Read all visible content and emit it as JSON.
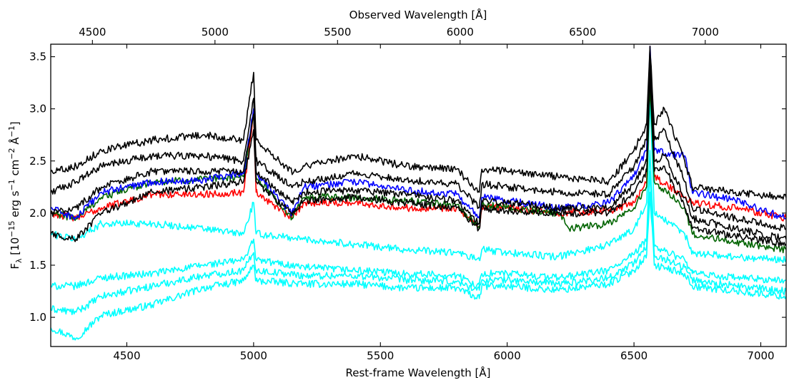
{
  "chart_data": {
    "type": "line",
    "title": "",
    "xlabel": "Rest-frame Wavelength [Å]",
    "ylabel": "F_λ [10^-15 erg s^-1 cm^-2 Å^-1]",
    "ylabel_parts": {
      "f": "F",
      "lambda_sub": "λ",
      "bracket_open": " [10",
      "exp_m15": "−15",
      "erg": " erg s",
      "exp_m1a": "−1",
      "cm": " cm",
      "exp_m2": "−2",
      "angstrom": " Å",
      "exp_m1b": "−1",
      "bracket_close": "]"
    },
    "x2label": "Observed Wavelength [Å]",
    "xlim": [
      4200,
      7100
    ],
    "ylim": [
      0.72,
      3.62
    ],
    "x2lim": [
      4330,
      7330
    ],
    "xticks": [
      4500,
      5000,
      5500,
      6000,
      6500,
      7000
    ],
    "yticks": [
      1.0,
      1.5,
      2.0,
      2.5,
      3.0,
      3.5
    ],
    "x2ticks": [
      4500,
      5000,
      5500,
      6000,
      6500,
      7000
    ],
    "xtick_labels": [
      "4500",
      "5000",
      "5500",
      "6000",
      "6500",
      "7000"
    ],
    "ytick_labels": [
      "1.0",
      "1.5",
      "2.0",
      "2.5",
      "3.0",
      "3.5"
    ],
    "x2tick_labels": [
      "4500",
      "5000",
      "5500",
      "6000",
      "6500",
      "7000"
    ],
    "series": [
      {
        "name": "cyan-1",
        "color": "#00ffff",
        "values": [
          [
            4200,
            0.9
          ],
          [
            4300,
            0.8
          ],
          [
            4400,
            1.02
          ],
          [
            4600,
            1.12
          ],
          [
            4800,
            1.28
          ],
          [
            4960,
            1.35
          ],
          [
            5000,
            1.5
          ],
          [
            5010,
            1.35
          ],
          [
            5200,
            1.32
          ],
          [
            5400,
            1.32
          ],
          [
            5600,
            1.28
          ],
          [
            5800,
            1.28
          ],
          [
            5890,
            1.18
          ],
          [
            5900,
            1.3
          ],
          [
            6000,
            1.3
          ],
          [
            6200,
            1.26
          ],
          [
            6400,
            1.32
          ],
          [
            6500,
            1.45
          ],
          [
            6550,
            1.6
          ],
          [
            6563,
            2.2
          ],
          [
            6580,
            1.5
          ],
          [
            6700,
            1.42
          ],
          [
            6730,
            1.3
          ],
          [
            6900,
            1.25
          ],
          [
            7100,
            1.2
          ]
        ]
      },
      {
        "name": "cyan-2",
        "color": "#00ffff",
        "values": [
          [
            4200,
            1.08
          ],
          [
            4300,
            1.05
          ],
          [
            4400,
            1.2
          ],
          [
            4600,
            1.3
          ],
          [
            4800,
            1.4
          ],
          [
            4960,
            1.45
          ],
          [
            5000,
            1.62
          ],
          [
            5010,
            1.45
          ],
          [
            5200,
            1.4
          ],
          [
            5400,
            1.4
          ],
          [
            5600,
            1.36
          ],
          [
            5800,
            1.34
          ],
          [
            5890,
            1.26
          ],
          [
            5900,
            1.36
          ],
          [
            6000,
            1.36
          ],
          [
            6200,
            1.32
          ],
          [
            6400,
            1.38
          ],
          [
            6500,
            1.52
          ],
          [
            6550,
            1.68
          ],
          [
            6563,
            2.4
          ],
          [
            6580,
            1.6
          ],
          [
            6700,
            1.48
          ],
          [
            6730,
            1.36
          ],
          [
            6900,
            1.3
          ],
          [
            7100,
            1.25
          ]
        ]
      },
      {
        "name": "cyan-3",
        "color": "#00ffff",
        "values": [
          [
            4200,
            1.3
          ],
          [
            4300,
            1.3
          ],
          [
            4400,
            1.38
          ],
          [
            4600,
            1.42
          ],
          [
            4800,
            1.5
          ],
          [
            4960,
            1.55
          ],
          [
            5000,
            1.75
          ],
          [
            5010,
            1.55
          ],
          [
            5200,
            1.48
          ],
          [
            5400,
            1.45
          ],
          [
            5600,
            1.42
          ],
          [
            5800,
            1.4
          ],
          [
            5890,
            1.3
          ],
          [
            5900,
            1.42
          ],
          [
            6000,
            1.42
          ],
          [
            6200,
            1.38
          ],
          [
            6400,
            1.45
          ],
          [
            6500,
            1.6
          ],
          [
            6550,
            1.75
          ],
          [
            6563,
            2.6
          ],
          [
            6580,
            1.68
          ],
          [
            6700,
            1.55
          ],
          [
            6730,
            1.42
          ],
          [
            6900,
            1.38
          ],
          [
            7100,
            1.35
          ]
        ]
      },
      {
        "name": "cyan-4",
        "color": "#00ffff",
        "values": [
          [
            4200,
            1.8
          ],
          [
            4300,
            1.75
          ],
          [
            4400,
            1.9
          ],
          [
            4600,
            1.9
          ],
          [
            4800,
            1.85
          ],
          [
            4960,
            1.8
          ],
          [
            5000,
            2.1
          ],
          [
            5010,
            1.8
          ],
          [
            5200,
            1.75
          ],
          [
            5400,
            1.7
          ],
          [
            5600,
            1.65
          ],
          [
            5800,
            1.62
          ],
          [
            5890,
            1.55
          ],
          [
            5900,
            1.65
          ],
          [
            6000,
            1.62
          ],
          [
            6200,
            1.58
          ],
          [
            6400,
            1.7
          ],
          [
            6500,
            1.85
          ],
          [
            6550,
            2.1
          ],
          [
            6563,
            3.1
          ],
          [
            6580,
            2.0
          ],
          [
            6700,
            1.8
          ],
          [
            6730,
            1.62
          ],
          [
            6900,
            1.58
          ],
          [
            7100,
            1.55
          ]
        ]
      },
      {
        "name": "red",
        "color": "#ff0000",
        "values": [
          [
            4200,
            2.0
          ],
          [
            4300,
            1.95
          ],
          [
            4400,
            2.05
          ],
          [
            4600,
            2.18
          ],
          [
            4800,
            2.18
          ],
          [
            4960,
            2.2
          ],
          [
            5000,
            2.95
          ],
          [
            5010,
            2.2
          ],
          [
            5150,
            1.95
          ],
          [
            5200,
            2.1
          ],
          [
            5400,
            2.1
          ],
          [
            5600,
            2.05
          ],
          [
            5800,
            2.05
          ],
          [
            5890,
            1.85
          ],
          [
            5900,
            2.05
          ],
          [
            6000,
            2.05
          ],
          [
            6200,
            2.0
          ],
          [
            6400,
            2.02
          ],
          [
            6500,
            2.1
          ],
          [
            6550,
            2.3
          ],
          [
            6563,
            3.6
          ],
          [
            6580,
            2.35
          ],
          [
            6700,
            2.15
          ],
          [
            6730,
            2.1
          ],
          [
            6900,
            2.05
          ],
          [
            7100,
            1.95
          ]
        ]
      },
      {
        "name": "green",
        "color": "#006400",
        "values": [
          [
            4200,
            2.0
          ],
          [
            4300,
            1.95
          ],
          [
            4400,
            2.15
          ],
          [
            4600,
            2.3
          ],
          [
            4800,
            2.32
          ],
          [
            4960,
            2.35
          ],
          [
            5000,
            2.95
          ],
          [
            5010,
            2.35
          ],
          [
            5150,
            1.95
          ],
          [
            5200,
            2.15
          ],
          [
            5400,
            2.15
          ],
          [
            5600,
            2.12
          ],
          [
            5800,
            2.08
          ],
          [
            5890,
            1.85
          ],
          [
            5900,
            2.08
          ],
          [
            6000,
            2.05
          ],
          [
            6200,
            2.0
          ],
          [
            6250,
            1.85
          ],
          [
            6400,
            1.9
          ],
          [
            6500,
            2.05
          ],
          [
            6550,
            2.25
          ],
          [
            6563,
            3.2
          ],
          [
            6580,
            2.3
          ],
          [
            6700,
            2.05
          ],
          [
            6730,
            1.8
          ],
          [
            6900,
            1.72
          ],
          [
            7100,
            1.65
          ]
        ]
      },
      {
        "name": "blue",
        "color": "#0000ff",
        "values": [
          [
            4200,
            2.05
          ],
          [
            4300,
            1.95
          ],
          [
            4400,
            2.2
          ],
          [
            4600,
            2.3
          ],
          [
            4800,
            2.32
          ],
          [
            4960,
            2.38
          ],
          [
            5000,
            3.0
          ],
          [
            5010,
            2.38
          ],
          [
            5150,
            2.0
          ],
          [
            5200,
            2.25
          ],
          [
            5400,
            2.3
          ],
          [
            5600,
            2.22
          ],
          [
            5800,
            2.18
          ],
          [
            5890,
            1.95
          ],
          [
            5900,
            2.15
          ],
          [
            6000,
            2.12
          ],
          [
            6200,
            2.05
          ],
          [
            6400,
            2.1
          ],
          [
            6500,
            2.35
          ],
          [
            6550,
            2.6
          ],
          [
            6563,
            3.6
          ],
          [
            6580,
            2.6
          ],
          [
            6700,
            2.55
          ],
          [
            6730,
            2.2
          ],
          [
            6900,
            2.12
          ],
          [
            7100,
            1.95
          ]
        ]
      },
      {
        "name": "black-1",
        "color": "#000000",
        "values": [
          [
            4200,
            2.4
          ],
          [
            4300,
            2.45
          ],
          [
            4400,
            2.6
          ],
          [
            4600,
            2.7
          ],
          [
            4800,
            2.75
          ],
          [
            4960,
            2.7
          ],
          [
            5000,
            3.35
          ],
          [
            5010,
            2.7
          ],
          [
            5150,
            2.4
          ],
          [
            5200,
            2.45
          ],
          [
            5400,
            2.55
          ],
          [
            5600,
            2.45
          ],
          [
            5800,
            2.42
          ],
          [
            5890,
            2.2
          ],
          [
            5900,
            2.42
          ],
          [
            6000,
            2.4
          ],
          [
            6200,
            2.35
          ],
          [
            6400,
            2.3
          ],
          [
            6500,
            2.6
          ],
          [
            6550,
            2.85
          ],
          [
            6563,
            3.6
          ],
          [
            6580,
            2.85
          ],
          [
            6620,
            3.0
          ],
          [
            6700,
            2.5
          ],
          [
            6730,
            2.25
          ],
          [
            6900,
            2.2
          ],
          [
            7100,
            2.15
          ]
        ]
      },
      {
        "name": "black-2",
        "color": "#000000",
        "values": [
          [
            4200,
            2.2
          ],
          [
            4300,
            2.3
          ],
          [
            4400,
            2.45
          ],
          [
            4600,
            2.55
          ],
          [
            4800,
            2.55
          ],
          [
            4960,
            2.5
          ],
          [
            5000,
            3.1
          ],
          [
            5010,
            2.5
          ],
          [
            5150,
            2.25
          ],
          [
            5200,
            2.3
          ],
          [
            5400,
            2.38
          ],
          [
            5600,
            2.32
          ],
          [
            5800,
            2.28
          ],
          [
            5890,
            2.05
          ],
          [
            5900,
            2.28
          ],
          [
            6000,
            2.25
          ],
          [
            6200,
            2.2
          ],
          [
            6400,
            2.18
          ],
          [
            6500,
            2.45
          ],
          [
            6550,
            2.7
          ],
          [
            6563,
            3.5
          ],
          [
            6580,
            2.7
          ],
          [
            6620,
            2.8
          ],
          [
            6700,
            2.3
          ],
          [
            6730,
            2.05
          ],
          [
            6900,
            1.95
          ],
          [
            7100,
            1.85
          ]
        ]
      },
      {
        "name": "black-3",
        "color": "#000000",
        "values": [
          [
            4200,
            2.0
          ],
          [
            4300,
            2.05
          ],
          [
            4400,
            2.25
          ],
          [
            4600,
            2.4
          ],
          [
            4800,
            2.4
          ],
          [
            4960,
            2.4
          ],
          [
            5000,
            2.95
          ],
          [
            5010,
            2.4
          ],
          [
            5150,
            2.1
          ],
          [
            5200,
            2.2
          ],
          [
            5400,
            2.22
          ],
          [
            5600,
            2.18
          ],
          [
            5800,
            2.12
          ],
          [
            5890,
            1.9
          ],
          [
            5900,
            2.12
          ],
          [
            6000,
            2.1
          ],
          [
            6200,
            2.05
          ],
          [
            6400,
            2.05
          ],
          [
            6500,
            2.28
          ],
          [
            6550,
            2.5
          ],
          [
            6563,
            3.4
          ],
          [
            6580,
            2.5
          ],
          [
            6620,
            2.55
          ],
          [
            6700,
            2.15
          ],
          [
            6730,
            1.95
          ],
          [
            6900,
            1.85
          ],
          [
            7100,
            1.75
          ]
        ]
      },
      {
        "name": "black-4",
        "color": "#000000",
        "values": [
          [
            4200,
            1.8
          ],
          [
            4300,
            1.75
          ],
          [
            4400,
            2.0
          ],
          [
            4600,
            2.2
          ],
          [
            4800,
            2.25
          ],
          [
            4960,
            2.3
          ],
          [
            5000,
            2.8
          ],
          [
            5010,
            2.3
          ],
          [
            5150,
            2.0
          ],
          [
            5200,
            2.12
          ],
          [
            5400,
            2.15
          ],
          [
            5600,
            2.1
          ],
          [
            5800,
            2.05
          ],
          [
            5890,
            1.85
          ],
          [
            5900,
            2.05
          ],
          [
            6000,
            2.02
          ],
          [
            6200,
            2.0
          ],
          [
            6400,
            2.0
          ],
          [
            6500,
            2.2
          ],
          [
            6550,
            2.4
          ],
          [
            6563,
            3.3
          ],
          [
            6580,
            2.4
          ],
          [
            6620,
            2.45
          ],
          [
            6700,
            2.05
          ],
          [
            6730,
            1.85
          ],
          [
            6900,
            1.78
          ],
          [
            7100,
            1.7
          ]
        ]
      }
    ]
  }
}
